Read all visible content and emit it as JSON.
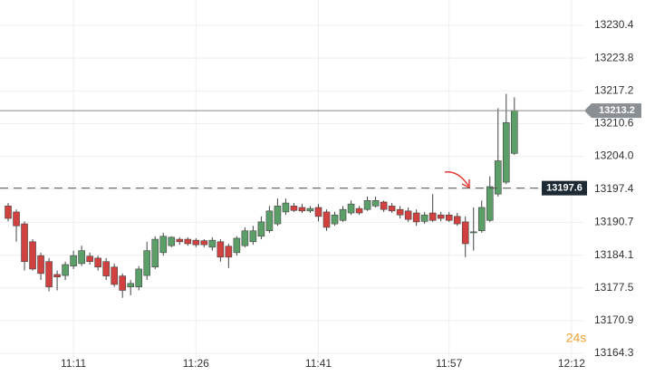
{
  "chart_data": {
    "type": "candlestick",
    "x": [
      "11:03",
      "11:04",
      "11:05",
      "11:06",
      "11:07",
      "11:08",
      "11:09",
      "11:10",
      "11:11",
      "11:12",
      "11:13",
      "11:14",
      "11:15",
      "11:16",
      "11:17",
      "11:18",
      "11:19",
      "11:20",
      "11:21",
      "11:22",
      "11:23",
      "11:24",
      "11:25",
      "11:26",
      "11:27",
      "11:28",
      "11:29",
      "11:30",
      "11:31",
      "11:32",
      "11:33",
      "11:34",
      "11:35",
      "11:36",
      "11:37",
      "11:38",
      "11:39",
      "11:40",
      "11:41",
      "11:42",
      "11:43",
      "11:44",
      "11:45",
      "11:46",
      "11:47",
      "11:48",
      "11:49",
      "11:50",
      "11:51",
      "11:52",
      "11:53",
      "11:54",
      "11:55",
      "11:56",
      "11:57",
      "11:58",
      "11:59",
      "12:00",
      "12:01",
      "12:02",
      "12:03",
      "12:04",
      "12:05"
    ],
    "open": [
      13194.0,
      13192.8,
      13190.4,
      13186.8,
      13184.0,
      13182.8,
      13180.2,
      13180.0,
      13181.9,
      13182.4,
      13183.9,
      13183.5,
      13182.8,
      13181.7,
      13179.9,
      13177.7,
      13177.7,
      13180.0,
      13181.7,
      13184.6,
      13186.0,
      13187.3,
      13187.3,
      13187.1,
      13187.0,
      13185.7,
      13186.8,
      13185.9,
      13184.6,
      13186.0,
      13186.8,
      13187.9,
      13189.0,
      13190.4,
      13192.8,
      13194.0,
      13193.7,
      13193.0,
      13193.7,
      13192.8,
      13190.4,
      13191.1,
      13192.6,
      13193.5,
      13193.3,
      13194.0,
      13194.8,
      13194.0,
      13193.3,
      13193.0,
      13192.6,
      13190.9,
      13192.6,
      13192.2,
      13192.2,
      13191.9,
      13190.8,
      13188.6,
      13189.0,
      13191.1,
      13196.4,
      13198.8,
      13204.6
    ],
    "high": [
      13194.6,
      13193.3,
      13190.9,
      13187.3,
      13184.6,
      13183.5,
      13181.0,
      13182.8,
      13185.0,
      13186.0,
      13184.6,
      13184.0,
      13183.5,
      13182.4,
      13180.4,
      13179.1,
      13181.9,
      13186.8,
      13187.9,
      13188.6,
      13187.9,
      13187.7,
      13187.7,
      13187.5,
      13187.3,
      13187.7,
      13187.3,
      13186.4,
      13187.9,
      13189.7,
      13190.0,
      13191.9,
      13194.0,
      13195.5,
      13195.5,
      13194.6,
      13194.4,
      13194.0,
      13194.4,
      13193.3,
      13192.8,
      13194.0,
      13195.1,
      13194.0,
      13195.9,
      13195.9,
      13195.1,
      13194.6,
      13194.0,
      13193.7,
      13193.3,
      13192.8,
      13196.4,
      13192.8,
      13192.8,
      13192.6,
      13191.9,
      13193.7,
      13195.1,
      13200.0,
      13213.7,
      13216.6,
      13215.9
    ],
    "low": [
      13190.9,
      13186.8,
      13181.0,
      13181.0,
      13179.1,
      13176.8,
      13177.0,
      13179.1,
      13181.3,
      13181.9,
      13182.2,
      13181.0,
      13179.1,
      13177.7,
      13175.5,
      13176.0,
      13177.0,
      13179.1,
      13181.3,
      13184.0,
      13185.7,
      13186.2,
      13186.0,
      13185.7,
      13185.7,
      13185.0,
      13182.8,
      13181.5,
      13184.0,
      13185.7,
      13186.2,
      13187.3,
      13188.6,
      13190.0,
      13192.2,
      13192.8,
      13192.6,
      13192.6,
      13190.9,
      13189.0,
      13190.0,
      13190.8,
      13192.2,
      13192.2,
      13193.0,
      13193.7,
      13192.8,
      13192.6,
      13191.5,
      13190.8,
      13190.0,
      13190.4,
      13190.8,
      13190.9,
      13190.8,
      13190.0,
      13183.7,
      13185.0,
      13188.6,
      13190.8,
      13195.9,
      13198.4,
      13204.3
    ],
    "close": [
      13191.5,
      13190.0,
      13182.8,
      13181.3,
      13180.4,
      13177.7,
      13179.7,
      13182.2,
      13184.0,
      13185.0,
      13182.8,
      13181.7,
      13179.9,
      13178.2,
      13177.0,
      13178.4,
      13181.3,
      13185.0,
      13187.3,
      13187.9,
      13187.7,
      13186.8,
      13186.4,
      13186.2,
      13186.2,
      13187.1,
      13183.7,
      13183.7,
      13187.5,
      13189.0,
      13189.0,
      13190.8,
      13193.0,
      13194.0,
      13194.6,
      13193.1,
      13193.0,
      13193.5,
      13191.9,
      13189.7,
      13192.2,
      13193.3,
      13194.4,
      13192.6,
      13195.1,
      13195.1,
      13193.3,
      13193.0,
      13192.2,
      13191.3,
      13190.8,
      13192.2,
      13191.1,
      13191.5,
      13191.1,
      13190.4,
      13186.4,
      13188.8,
      13193.7,
      13197.9,
      13203.1,
      13210.8,
      13213.2
    ],
    "up_color": "#5b9e68",
    "down_color": "#d0413f",
    "ylim": [
      13163.4,
      13235.5
    ],
    "yticks": [
      13230.4,
      13223.8,
      13217.2,
      13210.6,
      {
        "value": 13204,
        "label": "13204.0"
      },
      13197.4,
      13190.7,
      13184.1,
      13177.5,
      13170.9,
      13164.3
    ],
    "xlim": [
      "11:02",
      "12:21"
    ],
    "xticks": [
      "11:11",
      "11:26",
      "11:41",
      "11:57",
      "12:12"
    ],
    "grid": true,
    "price_lines": [
      {
        "value": 13213.2,
        "style": "solid"
      },
      {
        "value": 13197.6,
        "style": "dashed"
      }
    ],
    "countdown": "24s"
  }
}
